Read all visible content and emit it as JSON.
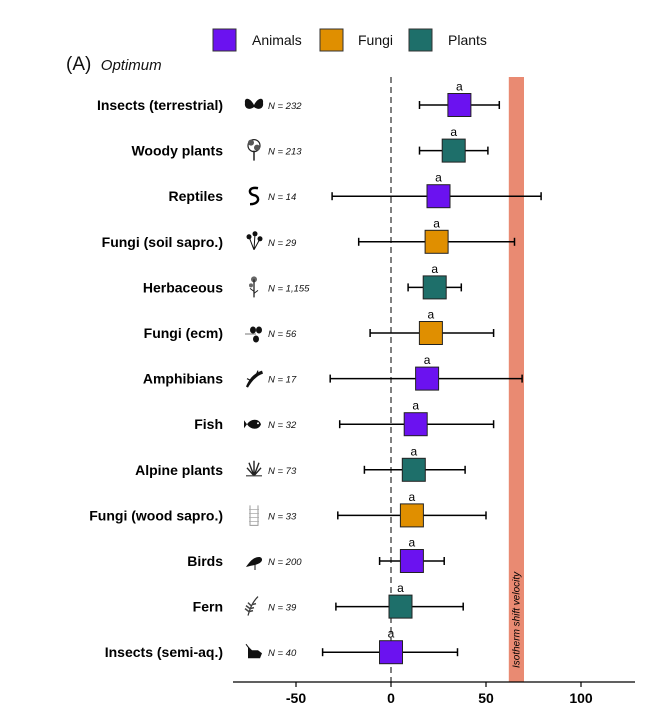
{
  "chart_data": {
    "type": "forest",
    "panel_label": "(A)",
    "panel_subtitle": "Optimum",
    "legend": [
      {
        "label": "Animals",
        "color": "#6B12F0"
      },
      {
        "label": "Fungi",
        "color": "#E08F00"
      },
      {
        "label": "Plants",
        "color": "#1E6F6A"
      }
    ],
    "x_ticks": [
      -50,
      0,
      50,
      100
    ],
    "x_tick_labels": [
      "-50",
      "0",
      "50",
      "100"
    ],
    "xlim": [
      -83,
      130
    ],
    "reference_line": 0,
    "isotherm": {
      "label": "Isotherm shift velocity",
      "from": 62,
      "to": 70,
      "color": "#E98A72"
    },
    "groups": [
      {
        "label": "Insects (terrestrial)",
        "n": "N = 232",
        "kingdom": "Animals",
        "icon": "butterfly-icon",
        "estimate": 36,
        "lower": 15,
        "upper": 57,
        "letter": "a"
      },
      {
        "label": "Woody plants",
        "n": "N = 213",
        "kingdom": "Plants",
        "icon": "tree-icon",
        "estimate": 33,
        "lower": 15,
        "upper": 51,
        "letter": "a"
      },
      {
        "label": "Reptiles",
        "n": "N = 14",
        "kingdom": "Animals",
        "icon": "snake-icon",
        "estimate": 25,
        "lower": -31,
        "upper": 79,
        "letter": "a"
      },
      {
        "label": "Fungi (soil sapro.)",
        "n": "N = 29",
        "kingdom": "Fungi",
        "icon": "mushroom-icon",
        "estimate": 24,
        "lower": -17,
        "upper": 65,
        "letter": "a"
      },
      {
        "label": "Herbaceous",
        "n": "N = 1,155",
        "kingdom": "Plants",
        "icon": "flower-icon",
        "estimate": 23,
        "lower": 9,
        "upper": 37,
        "letter": "a"
      },
      {
        "label": "Fungi (ecm)",
        "n": "N = 56",
        "kingdom": "Fungi",
        "icon": "truffle-icon",
        "estimate": 21,
        "lower": -11,
        "upper": 54,
        "letter": "a"
      },
      {
        "label": "Amphibians",
        "n": "N = 17",
        "kingdom": "Animals",
        "icon": "newt-icon",
        "estimate": 19,
        "lower": -32,
        "upper": 69,
        "letter": "a"
      },
      {
        "label": "Fish",
        "n": "N = 32",
        "kingdom": "Animals",
        "icon": "fish-icon",
        "estimate": 13,
        "lower": -27,
        "upper": 54,
        "letter": "a"
      },
      {
        "label": "Alpine plants",
        "n": "N = 73",
        "kingdom": "Plants",
        "icon": "alpine-plant-icon",
        "estimate": 12,
        "lower": -14,
        "upper": 39,
        "letter": "a"
      },
      {
        "label": "Fungi (wood sapro.)",
        "n": "N = 33",
        "kingdom": "Fungi",
        "icon": "wood-fungus-icon",
        "estimate": 11,
        "lower": -28,
        "upper": 50,
        "letter": "a"
      },
      {
        "label": "Birds",
        "n": "N = 200",
        "kingdom": "Animals",
        "icon": "bird-icon",
        "estimate": 11,
        "lower": -6,
        "upper": 28,
        "letter": "a"
      },
      {
        "label": "Fern",
        "n": "N = 39",
        "kingdom": "Plants",
        "icon": "fern-icon",
        "estimate": 5,
        "lower": -29,
        "upper": 38,
        "letter": "a"
      },
      {
        "label": "Insects (semi-aq.)",
        "n": "N = 40",
        "kingdom": "Animals",
        "icon": "aquatic-insect-icon",
        "estimate": 0,
        "lower": -36,
        "upper": 35,
        "letter": "a"
      }
    ]
  }
}
